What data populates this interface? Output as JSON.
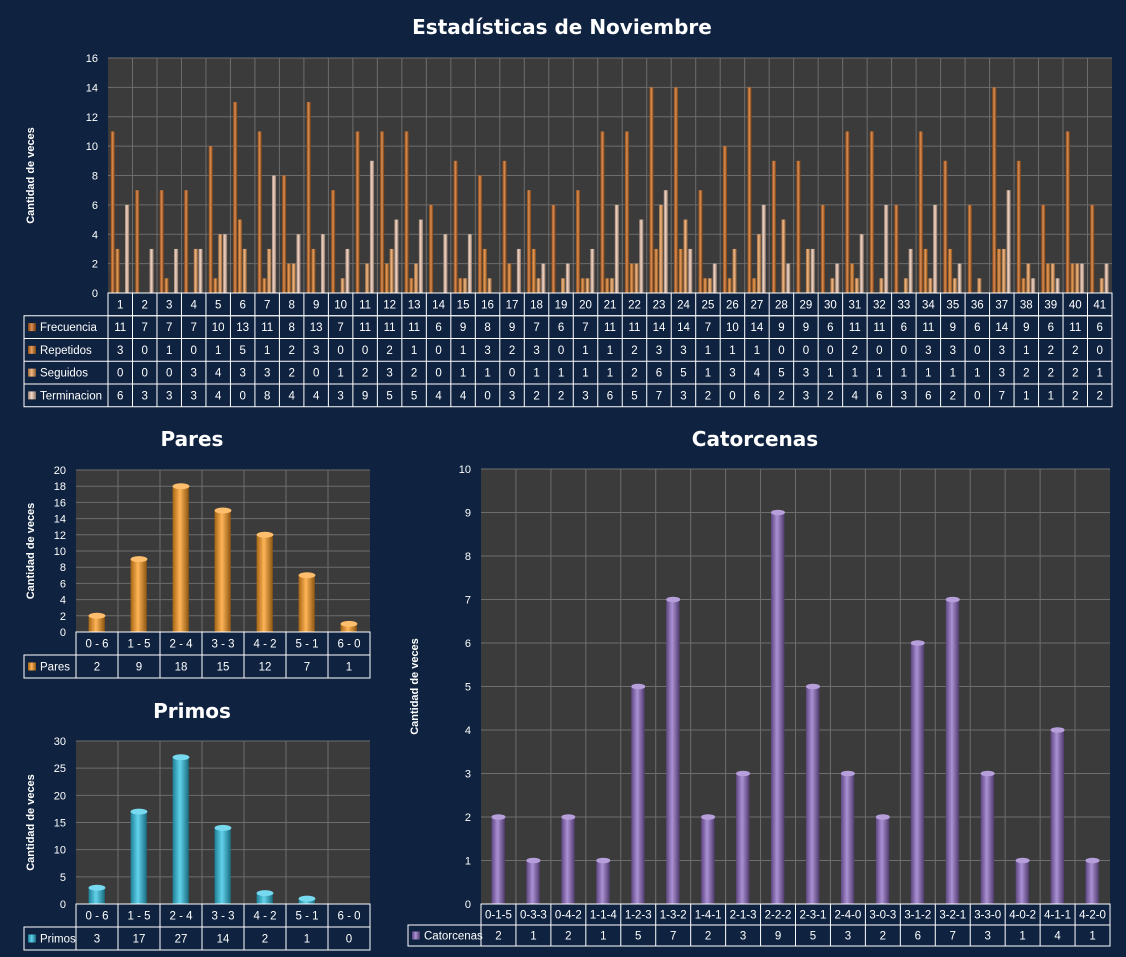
{
  "colors": {
    "background": "#0f2340",
    "plot_area": "#3b3b3b",
    "gridline": "#6d6d6d",
    "table_border": "#ffffff",
    "frecuencia": "#d0691c",
    "repetidos": "#e07e26",
    "seguidos": "#f0a25b",
    "terminacion": "#f2c9b3",
    "pares": "#ff9b1f",
    "primos": "#2ec4e6",
    "catorcenas": "#8f6cc6"
  },
  "chart_data": [
    {
      "id": "noviembre",
      "type": "bar",
      "title": "Estadísticas de Noviembre",
      "xlabel": "",
      "ylabel": "Cantidad de veces",
      "ylim": [
        0,
        16
      ],
      "yticks": [
        0,
        2,
        4,
        6,
        8,
        10,
        12,
        14,
        16
      ],
      "grid": true,
      "legend": "table-below",
      "categories": [
        "1",
        "2",
        "3",
        "4",
        "5",
        "6",
        "7",
        "8",
        "9",
        "10",
        "11",
        "12",
        "13",
        "14",
        "15",
        "16",
        "17",
        "18",
        "19",
        "20",
        "21",
        "22",
        "23",
        "24",
        "25",
        "26",
        "27",
        "28",
        "29",
        "30",
        "31",
        "32",
        "33",
        "34",
        "35",
        "36",
        "37",
        "38",
        "39",
        "40",
        "41"
      ],
      "series": [
        {
          "name": "Frecuencia",
          "color": "frecuencia",
          "values": [
            11,
            7,
            7,
            7,
            10,
            13,
            11,
            8,
            13,
            7,
            11,
            11,
            11,
            6,
            9,
            8,
            9,
            7,
            6,
            7,
            11,
            11,
            14,
            14,
            7,
            10,
            14,
            9,
            9,
            6,
            11,
            11,
            6,
            11,
            9,
            6,
            14,
            9,
            6,
            11,
            6
          ]
        },
        {
          "name": "Repetidos",
          "color": "repetidos",
          "values": [
            3,
            0,
            1,
            0,
            1,
            5,
            1,
            2,
            3,
            0,
            0,
            2,
            1,
            0,
            1,
            3,
            2,
            3,
            0,
            1,
            1,
            2,
            3,
            3,
            1,
            1,
            1,
            0,
            0,
            0,
            2,
            0,
            0,
            3,
            3,
            0,
            3,
            1,
            2,
            2,
            0
          ]
        },
        {
          "name": "Seguidos",
          "color": "seguidos",
          "values": [
            0,
            0,
            0,
            3,
            4,
            3,
            3,
            2,
            0,
            1,
            2,
            3,
            2,
            0,
            1,
            1,
            0,
            1,
            1,
            1,
            1,
            2,
            6,
            5,
            1,
            3,
            4,
            5,
            3,
            1,
            1,
            1,
            1,
            1,
            1,
            1,
            3,
            2,
            2,
            2,
            1
          ]
        },
        {
          "name": "Terminacion",
          "color": "terminacion",
          "values": [
            6,
            3,
            3,
            3,
            4,
            0,
            8,
            4,
            4,
            3,
            9,
            5,
            5,
            4,
            4,
            0,
            3,
            2,
            2,
            3,
            6,
            5,
            7,
            3,
            2,
            0,
            6,
            2,
            3,
            2,
            4,
            6,
            3,
            6,
            2,
            0,
            7,
            1,
            1,
            2,
            2
          ]
        }
      ]
    },
    {
      "id": "pares",
      "type": "bar",
      "title": "Pares",
      "xlabel": "",
      "ylabel": "Cantidad de veces",
      "ylim": [
        0,
        20
      ],
      "yticks": [
        0,
        2,
        4,
        6,
        8,
        10,
        12,
        14,
        16,
        18,
        20
      ],
      "grid": true,
      "legend": "table-below",
      "categories": [
        "0 - 6",
        "1 - 5",
        "2 - 4",
        "3 - 3",
        "4 - 2",
        "5 - 1",
        "6 - 0"
      ],
      "series": [
        {
          "name": "Pares",
          "color": "pares",
          "values": [
            2,
            9,
            18,
            15,
            12,
            7,
            1
          ]
        }
      ]
    },
    {
      "id": "primos",
      "type": "bar",
      "title": "Primos",
      "xlabel": "",
      "ylabel": "Cantidad de veces",
      "ylim": [
        0,
        30
      ],
      "yticks": [
        0,
        5,
        10,
        15,
        20,
        25,
        30
      ],
      "grid": true,
      "legend": "table-below",
      "categories": [
        "0 - 6",
        "1 - 5",
        "2 - 4",
        "3 - 3",
        "4 - 2",
        "5 - 1",
        "6 - 0"
      ],
      "series": [
        {
          "name": "Primos",
          "color": "primos",
          "values": [
            3,
            17,
            27,
            14,
            2,
            1,
            0
          ]
        }
      ]
    },
    {
      "id": "catorcenas",
      "type": "bar",
      "title": "Catorcenas",
      "xlabel": "",
      "ylabel": "Cantidad de veces",
      "ylim": [
        0,
        10
      ],
      "yticks": [
        0,
        1,
        2,
        3,
        4,
        5,
        6,
        7,
        8,
        9,
        10
      ],
      "grid": true,
      "legend": "table-below",
      "categories": [
        "0-1-5",
        "0-3-3",
        "0-4-2",
        "1-1-4",
        "1-2-3",
        "1-3-2",
        "1-4-1",
        "2-1-3",
        "2-2-2",
        "2-3-1",
        "2-4-0",
        "3-0-3",
        "3-1-2",
        "3-2-1",
        "3-3-0",
        "4-0-2",
        "4-1-1",
        "4-2-0"
      ],
      "series": [
        {
          "name": "Catorcenas",
          "color": "catorcenas",
          "values": [
            2,
            1,
            2,
            1,
            5,
            7,
            2,
            3,
            9,
            5,
            3,
            2,
            6,
            7,
            3,
            1,
            4,
            1
          ]
        }
      ]
    }
  ]
}
